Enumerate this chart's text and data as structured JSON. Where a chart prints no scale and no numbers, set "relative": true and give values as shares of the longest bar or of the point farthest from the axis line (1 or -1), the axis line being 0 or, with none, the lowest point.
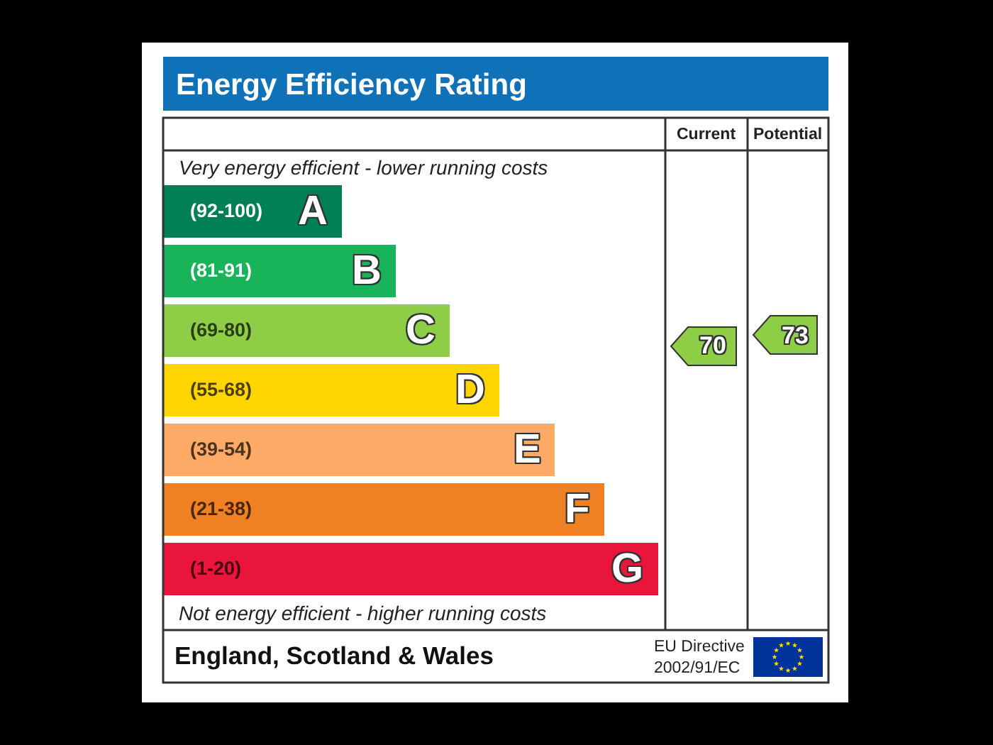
{
  "chart_data": {
    "type": "bar",
    "orientation": "horizontal",
    "relative": true,
    "title": "Energy Efficiency Rating",
    "categories": [
      "A",
      "B",
      "C",
      "D",
      "E",
      "F",
      "G"
    ],
    "values": [
      0.36,
      0.47,
      0.58,
      0.68,
      0.79,
      0.89,
      1
    ],
    "colors": [
      "#008054",
      "#19b459",
      "#8dce46",
      "#ffd500",
      "#fcaa65",
      "#ef8023",
      "#e9153b"
    ],
    "annotations": [
      "Very energy efficient - lower running costs",
      "Current",
      "Potential",
      "70",
      "73",
      "(92-100)",
      "(81-91)",
      "(69-80)",
      "(55-68)",
      "(39-54)",
      "(21-38)",
      "(1-20)",
      "Not energy efficient - higher running costs",
      "England, Scotland & Wales",
      "EU Directive\n2002/91/EC"
    ]
  }
}
